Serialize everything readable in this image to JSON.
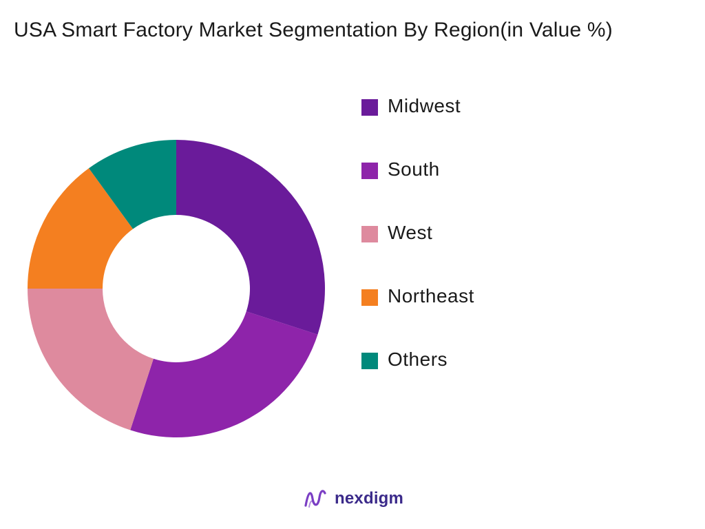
{
  "title": "USA Smart Factory Market Segmentation By Region(in Value %)",
  "brand": {
    "name": "nexdigm",
    "logo_color": "#7b3fc4"
  },
  "chart_data": {
    "type": "pie",
    "style": "donut",
    "title": "USA Smart Factory Market Segmentation By Region(in Value %)",
    "legend_position": "right",
    "unit": "%",
    "slices": [
      {
        "label": "Midwest",
        "value": 30,
        "color": "#6a1b9a"
      },
      {
        "label": "South",
        "value": 25,
        "color": "#8e24aa"
      },
      {
        "label": "West",
        "value": 20,
        "color": "#de8a9e"
      },
      {
        "label": "Northeast",
        "value": 15,
        "color": "#f47f20"
      },
      {
        "label": "Others",
        "value": 10,
        "color": "#00897b"
      }
    ]
  }
}
